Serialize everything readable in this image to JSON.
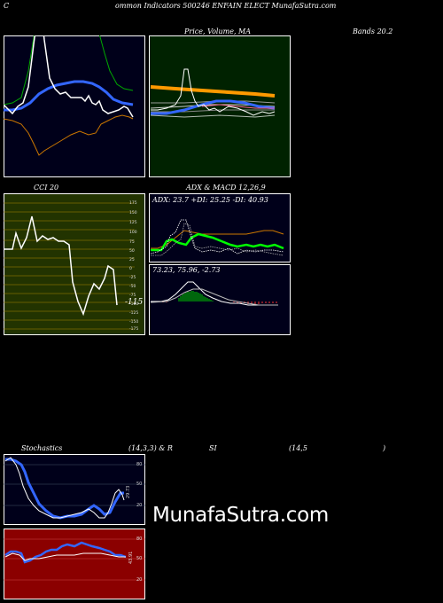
{
  "header": {
    "title_c": "C",
    "title_rest": "ommon  Indicators 500246  ENFAIN  ELECT MunafaSutra.com"
  },
  "bbands": {
    "label_left": "Bands 20,2",
    "label_price": "Price,  Volume,  MA",
    "label_right": "Bands 20.2"
  },
  "cci": {
    "label": "CCI 20",
    "current": "-115",
    "ticks": [
      "175",
      "150",
      "125",
      "100",
      "75",
      "50",
      "25",
      "0",
      "-25",
      "-50",
      "-75",
      "-100",
      "-125",
      "-150",
      "-175"
    ]
  },
  "adx": {
    "label": "ADX  & MACD 12,26,9",
    "values": "ADX: 23.7  +DI: 25.25 -DI: 40.93"
  },
  "macd": {
    "values": "73.23,  75.96,  -2.73"
  },
  "stoch": {
    "label_a": "Stochastics",
    "label_b": "(14,3,3) & R",
    "label_c": "SI",
    "label_d": "(14,5",
    "label_e": ")",
    "ticks": [
      "80",
      "50",
      "20"
    ],
    "current": "29.73"
  },
  "rsi": {
    "ticks": [
      "80",
      "50",
      "20"
    ],
    "current": "43.91"
  },
  "watermark": "MunafaSutra.com",
  "colors": {
    "panel_blue": "#00001a",
    "panel_green": "#002200",
    "cci_bg": "#223300",
    "rsi_bg": "#8b0000",
    "blue_line": "#3366ff",
    "orange": "#ff9900",
    "green_line": "#00ff00"
  }
}
